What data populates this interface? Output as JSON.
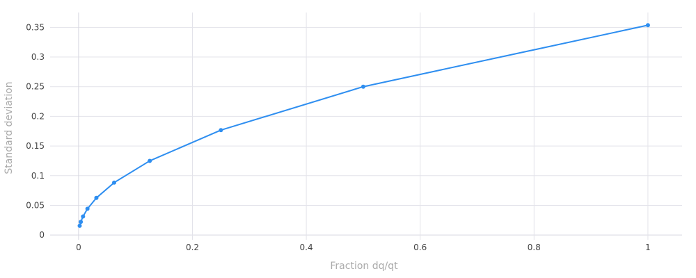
{
  "chart_data": {
    "type": "line",
    "xlabel": "Fraction dq/qt",
    "ylabel": "Standard deviation",
    "xlim": [
      -0.05,
      1.06
    ],
    "ylim": [
      -0.008,
      0.375
    ],
    "x_ticks": [
      0,
      0.2,
      0.4,
      0.6,
      0.8,
      1
    ],
    "x_tick_labels": [
      "0",
      "0.2",
      "0.4",
      "0.6",
      "0.8",
      "1"
    ],
    "y_ticks": [
      0,
      0.05,
      0.1,
      0.15,
      0.2,
      0.25,
      0.3,
      0.35
    ],
    "y_tick_labels": [
      "0",
      "0.05",
      "0.1",
      "0.15",
      "0.2",
      "0.25",
      "0.3",
      "0.35"
    ],
    "grid": true,
    "legend": "none",
    "series": [
      {
        "color": "#2e8ef0",
        "x": [
          0.00195,
          0.0039,
          0.0078,
          0.0156,
          0.03125,
          0.0625,
          0.125,
          0.25,
          0.5,
          1.0
        ],
        "y": [
          0.0156,
          0.0221,
          0.0313,
          0.0442,
          0.0625,
          0.0884,
          0.125,
          0.1768,
          0.25,
          0.3536
        ]
      }
    ]
  }
}
